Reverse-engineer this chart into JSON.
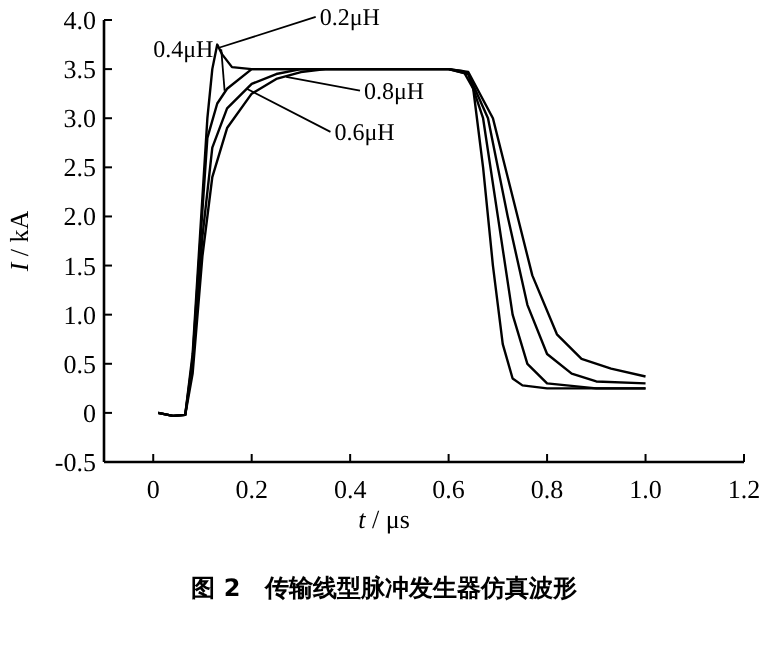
{
  "chart_data": {
    "type": "line",
    "xlabel": "*t* / μs",
    "ylabel": "*I* / kA",
    "xlim": [
      -0.1,
      1.2
    ],
    "ylim": [
      -0.5,
      4.0
    ],
    "xticks": [
      0,
      0.2,
      0.4,
      0.6,
      0.8,
      {
        "value": 1,
        "label": "1.0"
      },
      1.2
    ],
    "yticks": [
      -0.5,
      0,
      0.5,
      {
        "value": 1,
        "label": "1.0"
      },
      1.5,
      {
        "value": 2,
        "label": "2.0"
      },
      2.5,
      {
        "value": 3,
        "label": "3.0"
      },
      3.5,
      {
        "value": 4,
        "label": "4.0"
      }
    ],
    "grid": false,
    "legend": "top",
    "marker": "none",
    "line_style": "solid",
    "series": [
      {
        "name": "0.2μH",
        "color": "#000000",
        "x": [
          0.01,
          0.04,
          0.065,
          0.08,
          0.095,
          0.11,
          0.12,
          0.13,
          0.14,
          0.16,
          0.2,
          0.6,
          0.63,
          0.65,
          0.67,
          0.69,
          0.71,
          0.73,
          0.75,
          0.8,
          1.0
        ],
        "values": [
          0,
          -0.03,
          -0.02,
          0.6,
          1.8,
          3.0,
          3.5,
          3.75,
          3.65,
          3.52,
          3.5,
          3.5,
          3.48,
          3.3,
          2.5,
          1.5,
          0.7,
          0.35,
          0.28,
          0.25,
          0.25
        ]
      },
      {
        "name": "0.4μH",
        "color": "#000000",
        "x": [
          0.01,
          0.04,
          0.065,
          0.08,
          0.095,
          0.11,
          0.13,
          0.15,
          0.2,
          0.6,
          0.64,
          0.67,
          0.7,
          0.73,
          0.76,
          0.8,
          0.9,
          1.0
        ],
        "values": [
          0,
          -0.03,
          -0.02,
          0.55,
          1.7,
          2.8,
          3.15,
          3.3,
          3.5,
          3.5,
          3.45,
          3.0,
          2.0,
          1.0,
          0.5,
          0.3,
          0.25,
          0.25
        ]
      },
      {
        "name": "0.8μH",
        "color": "#000000",
        "x": [
          0.01,
          0.04,
          0.065,
          0.08,
          0.1,
          0.12,
          0.15,
          0.2,
          0.25,
          0.3,
          0.35,
          0.6,
          0.64,
          0.69,
          0.73,
          0.77,
          0.82,
          0.87,
          0.93,
          1.0
        ],
        "values": [
          0,
          -0.03,
          -0.02,
          0.4,
          1.6,
          2.4,
          2.9,
          3.25,
          3.4,
          3.47,
          3.5,
          3.5,
          3.47,
          3.0,
          2.2,
          1.4,
          0.8,
          0.55,
          0.45,
          0.37
        ]
      },
      {
        "name": "0.6μH",
        "color": "#000000",
        "x": [
          0.01,
          0.04,
          0.065,
          0.08,
          0.1,
          0.12,
          0.15,
          0.2,
          0.25,
          0.3,
          0.6,
          0.64,
          0.68,
          0.72,
          0.76,
          0.8,
          0.85,
          0.9,
          1.0
        ],
        "values": [
          0,
          -0.03,
          -0.02,
          0.5,
          1.8,
          2.7,
          3.1,
          3.35,
          3.45,
          3.5,
          3.5,
          3.45,
          3.0,
          2.0,
          1.1,
          0.6,
          0.4,
          0.32,
          0.3
        ]
      }
    ],
    "annotations": [
      "图 2　传输线型脉冲发生器仿真波形"
    ]
  }
}
